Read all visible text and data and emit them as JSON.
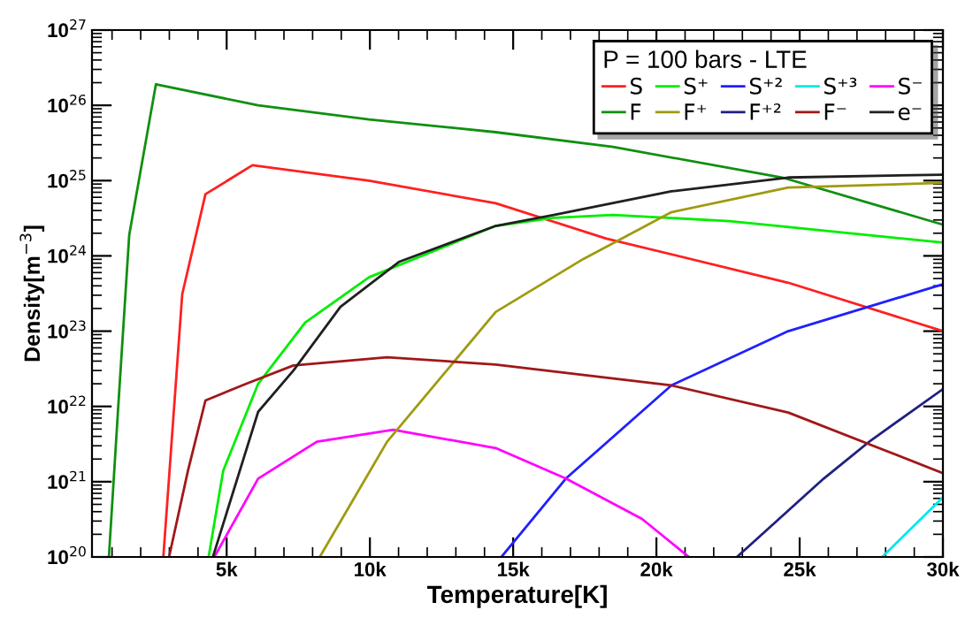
{
  "chart_data": {
    "type": "line",
    "xlabel": "Temperature[K]",
    "ylabel": "Density[m$^{−3}$]",
    "legend_title": "P = 100 bars - LTE",
    "legend": "top right",
    "log": "y",
    "grid": false,
    "marker": "none",
    "line_style": "solid",
    "xlim": [
      300,
      30000
    ],
    "xticks": [
      {
        "value": 5000,
        "label": "5k"
      },
      {
        "value": 10000,
        "label": "10k"
      },
      {
        "value": 15000,
        "label": "15k"
      },
      {
        "value": 20000,
        "label": "20k"
      },
      {
        "value": 25000,
        "label": "25k"
      },
      {
        "value": 30000,
        "label": "30k"
      }
    ],
    "ylim": [
      1e+20,
      1e+27
    ],
    "yticks": [
      {
        "value": 1e+20,
        "label": "10$^{20}$"
      },
      {
        "value": 1e+21,
        "label": "10$^{21}$"
      },
      {
        "value": 1e+22,
        "label": "10$^{22}$"
      },
      {
        "value": 1e+23,
        "label": "10$^{23}$"
      },
      {
        "value": 1e+24,
        "label": "10$^{24}$"
      },
      {
        "value": 1e+25,
        "label": "10$^{25}$"
      },
      {
        "value": 1e+26,
        "label": "10$^{26}$"
      },
      {
        "value": 1e+27,
        "label": "10$^{27}$"
      }
    ],
    "series": [
      {
        "name": "S",
        "color": "#ff2020",
        "x": [
          2790,
          3450,
          4260,
          5900,
          9970,
          14390,
          18250,
          24600,
          30000
        ],
        "values": [
          1e+20,
          3.1e+23,
          6.6e+24,
          1.6e+25,
          1e+25,
          5e+24,
          1.7e+24,
          4.4e+23,
          1e+23
        ]
      },
      {
        "name": "S⁺",
        "color": "#00ee00",
        "x": [
          4370,
          4880,
          6100,
          7740,
          9970,
          14390,
          16420,
          18480,
          22550,
          30000
        ],
        "values": [
          1e+20,
          1.4e+21,
          2e+22,
          1.3e+23,
          5.2e+23,
          2.5e+24,
          3.2e+24,
          3.5e+24,
          2.9e+24,
          1.5e+24
        ]
      },
      {
        "name": "S⁺²",
        "color": "#2020ff",
        "x": [
          14590,
          16840,
          20520,
          24600,
          30000
        ],
        "values": [
          1e+20,
          1.1e+21,
          1.9e+22,
          1e+23,
          4.2e+23
        ]
      },
      {
        "name": "S⁺³",
        "color": "#00e8e8",
        "x": [
          27880,
          30000
        ],
        "values": [
          1e+20,
          6.2e+20
        ]
      },
      {
        "name": "S⁻",
        "color": "#ff00ff",
        "x": [
          4570,
          6100,
          8150,
          10810,
          14390,
          16840,
          19500,
          21130
        ],
        "values": [
          1e+20,
          1.1e+21,
          3.4e+21,
          4.9e+21,
          2.8e+21,
          1.1e+21,
          3.2e+20,
          1e+20
        ]
      },
      {
        "name": "F",
        "color": "#109010",
        "x": [
          890,
          1200,
          1600,
          2530,
          6100,
          9970,
          14390,
          18480,
          24390,
          30000
        ],
        "values": [
          1e+20,
          7.9e+21,
          1.9e+24,
          1.9e+26,
          1e+26,
          6.5e+25,
          4.4e+25,
          2.8e+25,
          1.1e+25,
          2.6e+24
        ]
      },
      {
        "name": "F⁺",
        "color": "#a09a10",
        "x": [
          8250,
          10600,
          14390,
          17450,
          20520,
          24600,
          30000
        ],
        "values": [
          1e+20,
          3.4e+21,
          1.8e+23,
          9.1e+23,
          3.8e+24,
          8.1e+24,
          9.3e+24
        ]
      },
      {
        "name": "F⁺²",
        "color": "#202080",
        "x": [
          22810,
          25840,
          27470,
          30000
        ],
        "values": [
          1e+20,
          1.1e+21,
          3.5e+21,
          1.7e+22
        ]
      },
      {
        "name": "F⁻",
        "color": "#a01818",
        "x": [
          2990,
          3650,
          4260,
          5690,
          7330,
          10600,
          14390,
          20520,
          24600,
          30000
        ],
        "values": [
          1e+20,
          1.4e+21,
          1.2e+22,
          2e+22,
          3.5e+22,
          4.5e+22,
          3.6e+22,
          1.9e+22,
          8.3e+21,
          1.3e+21
        ]
      },
      {
        "name": "e⁻",
        "color": "#202020",
        "x": [
          4520,
          6100,
          7330,
          8970,
          11010,
          14390,
          16420,
          20520,
          24600,
          30000
        ],
        "values": [
          1e+20,
          8.5e+21,
          3e+22,
          2.1e+23,
          8.3e+23,
          2.5e+24,
          3.5e+24,
          7.2e+24,
          1.1e+25,
          1.2e+25
        ]
      }
    ]
  }
}
